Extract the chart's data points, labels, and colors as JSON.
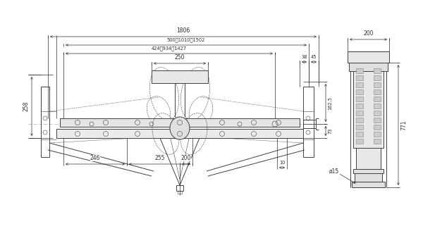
{
  "bg_color": "#ffffff",
  "line_color": "#404040",
  "dim_color": "#303030",
  "fig_width": 6.0,
  "fig_height": 3.28,
  "dpi": 100
}
